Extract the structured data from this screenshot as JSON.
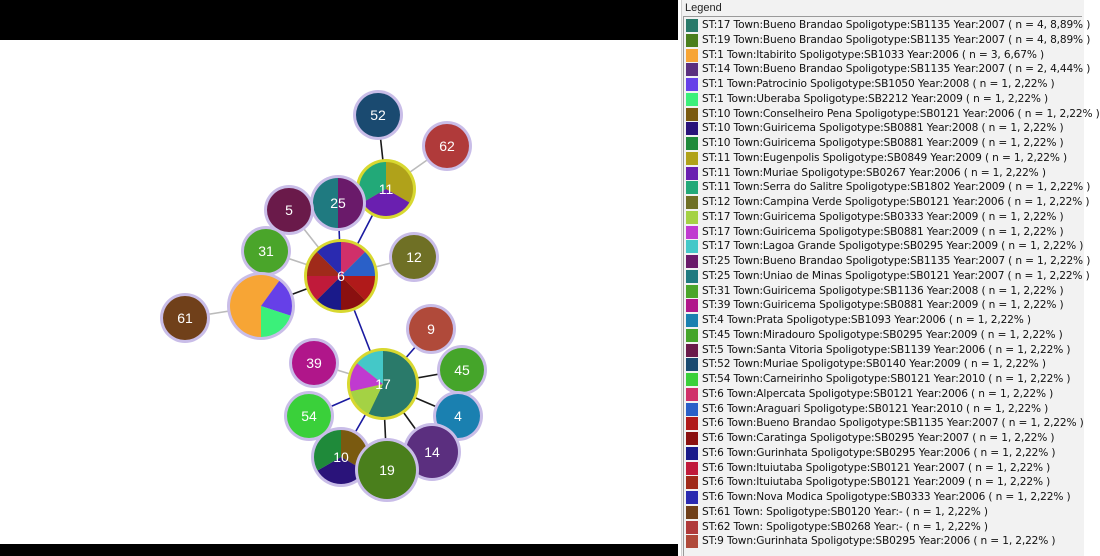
{
  "legend": {
    "title": "Legend",
    "items": [
      {
        "label": "ST:17 Town:Bueno Brandao  Spoligotype:SB1135 Year:2007 ( n = 4, 8,89% )",
        "color": "#2a7a6a"
      },
      {
        "label": "ST:19 Town:Bueno Brandao  Spoligotype:SB1135 Year:2007 ( n = 4, 8,89% )",
        "color": "#4a7f1c"
      },
      {
        "label": "ST:1 Town:Itabirito Spoligotype:SB1033 Year:2006 ( n = 3, 6,67% )",
        "color": "#f7a535"
      },
      {
        "label": "ST:14 Town:Bueno Brandao  Spoligotype:SB1135 Year:2007 ( n = 2, 4,44% )",
        "color": "#5b2f7f"
      },
      {
        "label": "ST:1 Town:Patrocinio Spoligotype:SB1050 Year:2008 ( n = 1, 2,22% )",
        "color": "#6640e8"
      },
      {
        "label": "ST:1 Town:Uberaba Spoligotype:SB2212 Year:2009 ( n = 1, 2,22% )",
        "color": "#3bf07a"
      },
      {
        "label": "ST:10 Town:Conselheiro Pena Spoligotype:SB0121 Year:2006 ( n = 1, 2,22% )",
        "color": "#7a5a10"
      },
      {
        "label": "ST:10 Town:Guiricema Spoligotype:SB0881 Year:2008 ( n = 1, 2,22% )",
        "color": "#2a137a"
      },
      {
        "label": "ST:10 Town:Guiricema Spoligotype:SB0881 Year:2009 ( n = 1, 2,22% )",
        "color": "#1f8a3a"
      },
      {
        "label": "ST:11 Town:Eugenpolis Spoligotype:SB0849 Year:2009 ( n = 1, 2,22% )",
        "color": "#b0a21a"
      },
      {
        "label": "ST:11 Town:Muriae Spoligotype:SB0267 Year:2006 ( n = 1, 2,22% )",
        "color": "#6a1fb0"
      },
      {
        "label": "ST:11 Town:Serra do Salitre Spoligotype:SB1802 Year:2009 ( n = 1, 2,22% )",
        "color": "#22a978"
      },
      {
        "label": "ST:12 Town:Campina Verde Spoligotype:SB0121 Year:2006 ( n = 1, 2,22% )",
        "color": "#6f7025"
      },
      {
        "label": "ST:17 Town:Guiricema Spoligotype:SB0333 Year:2009 ( n = 1, 2,22% )",
        "color": "#a4d244"
      },
      {
        "label": "ST:17 Town:Guiricema Spoligotype:SB0881 Year:2009 ( n = 1, 2,22% )",
        "color": "#c03ad0"
      },
      {
        "label": "ST:17 Town:Lagoa Grande Spoligotype:SB0295 Year:2009 ( n = 1, 2,22% )",
        "color": "#44c8c8"
      },
      {
        "label": "ST:25 Town:Bueno Brandao  Spoligotype:SB1135 Year:2007 ( n = 1, 2,22% )",
        "color": "#6a1a6a"
      },
      {
        "label": "ST:25 Town:Uniao de Minas Spoligotype:SB0121 Year:2007 ( n = 1, 2,22% )",
        "color": "#1f7a80"
      },
      {
        "label": "ST:31 Town:Guiricema Spoligotype:SB1136 Year:2008 ( n = 1, 2,22% )",
        "color": "#4aa52a"
      },
      {
        "label": "ST:39 Town:Guiricema Spoligotype:SB0881 Year:2009 ( n = 1, 2,22% )",
        "color": "#b0168a"
      },
      {
        "label": "ST:4 Town:Prata Spoligotype:SB1093 Year:2006 ( n = 1, 2,22% )",
        "color": "#1a80b0"
      },
      {
        "label": "ST:45 Town:Miradouro Spoligotype:SB0295 Year:2009 ( n = 1, 2,22% )",
        "color": "#45a52a"
      },
      {
        "label": "ST:5 Town:Santa Vitoria Spoligotype:SB1139 Year:2006 ( n = 1, 2,22% )",
        "color": "#6a1a4a"
      },
      {
        "label": "ST:52 Town:Muriae Spoligotype:SB0140 Year:2009 ( n = 1, 2,22% )",
        "color": "#1a4a70"
      },
      {
        "label": "ST:54 Town:Carneirinho Spoligotype:SB0121 Year:2010 ( n = 1, 2,22% )",
        "color": "#3ad03a"
      },
      {
        "label": "ST:6 Town:Alpercata Spoligotype:SB0121 Year:2006 ( n = 1, 2,22% )",
        "color": "#d0306a"
      },
      {
        "label": "ST:6 Town:Araguari Spoligotype:SB0121 Year:2010 ( n = 1, 2,22% )",
        "color": "#2a60c8"
      },
      {
        "label": "ST:6 Town:Bueno Brandao  Spoligotype:SB1135 Year:2007 ( n = 1, 2,22% )",
        "color": "#b01a1a"
      },
      {
        "label": "ST:6 Town:Caratinga Spoligotype:SB0295 Year:2007 ( n = 1, 2,22% )",
        "color": "#8a1010"
      },
      {
        "label": "ST:6 Town:Gurinhata Spoligotype:SB0295 Year:2006 ( n = 1, 2,22% )",
        "color": "#1a1a8a"
      },
      {
        "label": "ST:6 Town:Ituiutaba Spoligotype:SB0121 Year:2007 ( n = 1, 2,22% )",
        "color": "#c01a3a"
      },
      {
        "label": "ST:6 Town:Ituiutaba Spoligotype:SB0121 Year:2009 ( n = 1, 2,22% )",
        "color": "#a02a1a"
      },
      {
        "label": "ST:6 Town:Nova Modica Spoligotype:SB0333 Year:2006 ( n = 1, 2,22% )",
        "color": "#2a2ab0"
      },
      {
        "label": "ST:61 Town: Spoligotype:SB0120 Year:- ( n = 1, 2,22% )",
        "color": "#70401a"
      },
      {
        "label": "ST:62 Town: Spoligotype:SB0268 Year:- ( n = 1, 2,22% )",
        "color": "#b03a3a"
      },
      {
        "label": "ST:9 Town:Gurinhata Spoligotype:SB0295 Year:2006 ( n = 1, 2,22% )",
        "color": "#b04a3a"
      }
    ]
  },
  "graph": {
    "nodes": [
      {
        "id": "n52",
        "label": "52"
      },
      {
        "id": "n62",
        "label": "62"
      },
      {
        "id": "n11",
        "label": "11"
      },
      {
        "id": "n25",
        "label": "25"
      },
      {
        "id": "n5",
        "label": "5"
      },
      {
        "id": "n31",
        "label": "31"
      },
      {
        "id": "n6",
        "label": "6"
      },
      {
        "id": "n12",
        "label": "12"
      },
      {
        "id": "n1",
        "label": ""
      },
      {
        "id": "n61",
        "label": "61"
      },
      {
        "id": "n9",
        "label": "9"
      },
      {
        "id": "n39",
        "label": "39"
      },
      {
        "id": "n17",
        "label": "17"
      },
      {
        "id": "n45",
        "label": "45"
      },
      {
        "id": "n54",
        "label": "54"
      },
      {
        "id": "n4",
        "label": "4"
      },
      {
        "id": "n10",
        "label": "10"
      },
      {
        "id": "n14",
        "label": "14"
      },
      {
        "id": "n19",
        "label": "19"
      }
    ]
  }
}
